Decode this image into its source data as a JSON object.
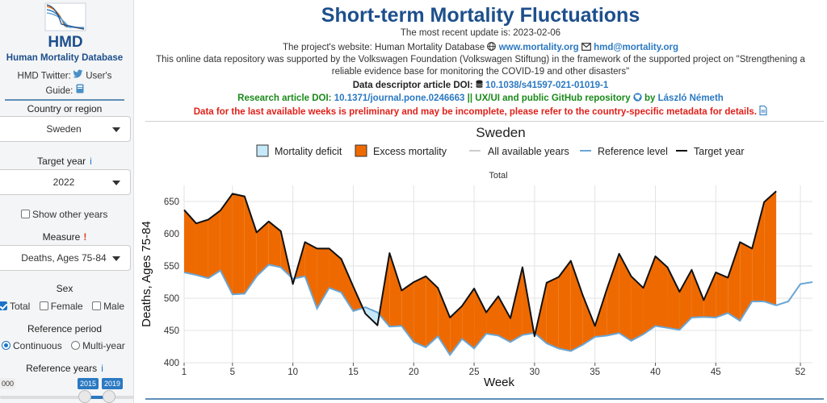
{
  "sidebar": {
    "logo_text": "HMD",
    "site_name": "Human Mortality Database",
    "twitter_label": "HMD Twitter:",
    "guide_label_1": "User's",
    "guide_label_2": "Guide:",
    "country_label": "Country or region",
    "country_value": "Sweden",
    "target_year_label": "Target year",
    "target_year_info": "i",
    "target_year_value": "2022",
    "show_other_years_label": "Show other years",
    "measure_label": "Measure",
    "measure_warn": "!",
    "measure_value": "Deaths, Ages 75-84",
    "sex_label": "Sex",
    "sex_options": [
      "Total",
      "Female",
      "Male"
    ],
    "reference_period_label": "Reference period",
    "reference_period_options": [
      "Continuous",
      "Multi-year"
    ],
    "reference_years_label": "Reference years",
    "reference_years_info": "i",
    "slider_min_label": "000",
    "slider_from": "2015",
    "slider_to": "2019",
    "colors": {
      "brand": "#1d4f8c",
      "accent": "#2b79c2"
    }
  },
  "header": {
    "title": "Short-term Mortality Fluctuations",
    "update_line": "The most recent update is: 2023-02-06",
    "website_prefix": "The project's website: Human Mortality Database",
    "website_link": "www.mortality.org",
    "email_link": "hmd@mortality.org",
    "support_line_1": "This online data repository was supported by the Volkswagen Foundation (Volkswagen Stiftung) in the framework of the supported project on \"Strengthening a",
    "support_line_2": "reliable evidence base for monitoring the COVID-19 and other disasters\"",
    "descriptor_prefix": "Data descriptor article DOI:",
    "descriptor_doi": "10.1038/s41597-021-01019-1",
    "research_prefix": "Research article DOI:",
    "research_doi": "10.1371/journal.pone.0246663",
    "research_mid": "|| UX/UI and public GitHub repository",
    "research_by": "by",
    "research_author": "László Németh",
    "warning": "Data for the last available weeks is preliminary and may be incomplete, please refer to the country-specific metadata for details."
  },
  "chart_data": {
    "type": "line",
    "title": "Sweden",
    "subtitle": "Total",
    "xlabel": "Week",
    "ylabel": "Deaths, Ages 75-84",
    "xlim": [
      1,
      53
    ],
    "ylim": [
      400,
      675
    ],
    "x_ticks": [
      1,
      5,
      10,
      15,
      20,
      25,
      30,
      35,
      40,
      45,
      52
    ],
    "y_ticks": [
      400,
      450,
      500,
      550,
      600,
      650
    ],
    "grid": true,
    "legend_position": "top",
    "legend": [
      "Mortality deficit",
      "Excess mortality",
      "All available years",
      "Reference level",
      "Target year"
    ],
    "colors": {
      "deficit": "#c6e9fa",
      "excess": "#ee6a00",
      "reference": "#6aa6d6",
      "target": "#111111",
      "all_years": "#cccccc"
    },
    "series": [
      {
        "name": "Target year",
        "x": [
          1,
          2,
          3,
          4,
          5,
          6,
          7,
          8,
          9,
          10,
          11,
          12,
          13,
          14,
          15,
          16,
          17,
          18,
          19,
          20,
          21,
          22,
          23,
          24,
          25,
          26,
          27,
          28,
          29,
          30,
          31,
          32,
          33,
          34,
          35,
          36,
          37,
          38,
          39,
          40,
          41,
          42,
          43,
          44,
          45,
          46,
          47,
          48,
          49,
          50
        ],
        "values": [
          637,
          616,
          622,
          636,
          662,
          658,
          602,
          619,
          604,
          522,
          587,
          577,
          577,
          561,
          518,
          476,
          458,
          570,
          512,
          525,
          534,
          516,
          470,
          488,
          515,
          478,
          503,
          469,
          548,
          441,
          524,
          533,
          558,
          504,
          457,
          515,
          569,
          534,
          516,
          565,
          548,
          510,
          544,
          497,
          540,
          532,
          587,
          577,
          649,
          666
        ]
      },
      {
        "name": "Reference level",
        "x": [
          1,
          2,
          3,
          4,
          5,
          6,
          7,
          8,
          9,
          10,
          11,
          12,
          13,
          14,
          15,
          16,
          17,
          18,
          19,
          20,
          21,
          22,
          23,
          24,
          25,
          26,
          27,
          28,
          29,
          30,
          31,
          32,
          33,
          34,
          35,
          36,
          37,
          38,
          39,
          40,
          41,
          42,
          43,
          44,
          45,
          46,
          47,
          48,
          49,
          50,
          51,
          52,
          53
        ],
        "values": [
          540,
          536,
          531,
          543,
          506,
          507,
          534,
          552,
          548,
          530,
          534,
          484,
          516,
          509,
          480,
          486,
          478,
          456,
          457,
          432,
          424,
          441,
          412,
          437,
          422,
          445,
          442,
          432,
          443,
          446,
          430,
          422,
          418,
          428,
          440,
          442,
          446,
          434,
          444,
          457,
          454,
          451,
          470,
          471,
          470,
          477,
          465,
          495,
          495,
          489,
          495,
          522,
          525
        ]
      }
    ]
  }
}
